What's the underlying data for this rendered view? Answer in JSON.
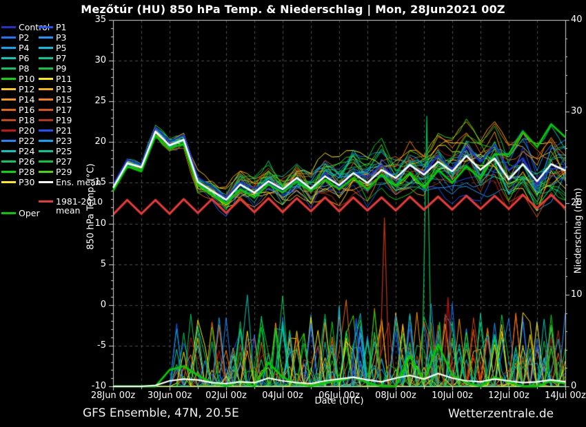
{
  "header": {
    "title": "Mezőtúr  (HU)  850 hPa Temp. & Niederschlag | Mon, 28Jun2021 00Z"
  },
  "footer": {
    "left": "GFS Ensemble, 47N, 20.5E",
    "right": "Wetterzentrale.de"
  },
  "chart_data": {
    "type": "line",
    "title": "Mezőtúr  (HU)  850 hPa Temp. & Niederschlag | Mon, 28Jun2021 00Z",
    "x": {
      "label": "Date (UTC)",
      "tick_labels": [
        "28Jun 00z",
        "30Jun 00z",
        "02Jul 00z",
        "04Jul 00z",
        "06Jul 00z",
        "08Jul 00z",
        "10Jul 00z",
        "12Jul 00z",
        "14Jul 00z"
      ],
      "days_total": 16,
      "step_hours": 12,
      "grid_every_days": 1
    },
    "y_left": {
      "label": "850 hPa Temp. (°C)",
      "min": -10,
      "max": 35,
      "ticks": [
        -10,
        -5,
        0,
        5,
        10,
        15,
        20,
        25,
        30,
        35
      ],
      "minor_step": 1
    },
    "y_right": {
      "label": "Niederschlag (mm)",
      "min": 0,
      "max": 40,
      "ticks": [
        0,
        10,
        20,
        30,
        40
      ],
      "minor_step": 2
    },
    "grid": {
      "on": true,
      "color": "#4d4d45"
    },
    "series": {
      "ens_mean_temp": [
        14.4,
        17.4,
        16.9,
        21.3,
        19.6,
        20.3,
        15.1,
        14.0,
        12.9,
        14.8,
        13.8,
        15.2,
        14.2,
        15.6,
        14.3,
        15.8,
        14.7,
        16.2,
        15.0,
        16.6,
        15.6,
        17.2,
        16.0,
        17.6,
        16.4,
        18.3,
        16.6,
        18.0,
        15.4,
        17.3,
        15.2,
        17.3,
        16.5
      ],
      "oper_temp": [
        14.0,
        17.0,
        16.4,
        20.8,
        19.2,
        19.8,
        14.8,
        13.5,
        12.5,
        14.2,
        13.2,
        14.8,
        13.8,
        15.2,
        14.0,
        15.4,
        14.2,
        15.6,
        14.2,
        16.0,
        14.6,
        16.2,
        14.4,
        16.6,
        15.0,
        17.0,
        15.5,
        18.5,
        18.5,
        21.3,
        19.4,
        22.2,
        20.6
      ],
      "climate_temp": [
        11.1,
        12.9,
        11.2,
        12.9,
        11.2,
        13.0,
        11.3,
        13.0,
        11.3,
        13.0,
        11.4,
        13.1,
        11.4,
        13.1,
        11.5,
        13.2,
        11.5,
        13.2,
        11.6,
        13.2,
        11.6,
        13.3,
        11.7,
        13.3,
        11.7,
        13.4,
        11.8,
        13.4,
        11.8,
        13.5,
        11.9,
        13.5,
        11.9
      ],
      "member_spread": [
        0.15,
        0.7,
        0.8,
        0.9,
        1.0,
        1.1,
        1.4,
        1.7,
        2.0,
        2.2,
        2.4,
        2.6,
        2.8,
        3.0,
        3.2,
        3.4,
        3.5,
        3.7,
        3.8,
        4.0,
        4.1,
        4.2,
        4.3,
        4.4,
        4.5,
        4.6,
        4.7,
        4.8,
        4.9,
        5.0,
        5.1,
        5.2,
        5.3
      ],
      "ens_mean_precip": [
        0,
        0,
        0,
        0.1,
        0.6,
        0.8,
        0.7,
        0.4,
        0.3,
        0.5,
        0.4,
        0.9,
        0.6,
        0.4,
        0.3,
        0.6,
        0.8,
        1.0,
        0.7,
        0.5,
        0.9,
        1.2,
        0.8,
        1.4,
        0.9,
        0.6,
        0.5,
        0.8,
        0.6,
        0.4,
        0.5,
        0.7,
        0.5
      ],
      "oper_precip": [
        0,
        0,
        0,
        0,
        1.8,
        2.2,
        1.2,
        0.4,
        0,
        0.6,
        0,
        2.6,
        1.0,
        0.3,
        0,
        0.4,
        0.6,
        1.0,
        0.4,
        0,
        0,
        3.3,
        0.6,
        4.6,
        1.2,
        0.4,
        0,
        1.0,
        0.5,
        0,
        0,
        0.6,
        0.3
      ],
      "big_precip_spikes": [
        {
          "i": 11.5,
          "mm": 6.3,
          "color": "#00cc44"
        },
        {
          "i": 16.0,
          "mm": 8.8,
          "color": "#00bbcc"
        },
        {
          "i": 17.2,
          "mm": 7.4,
          "color": "#1a53ff"
        },
        {
          "i": 19.2,
          "mm": 18.4,
          "color": "#bb3311"
        },
        {
          "i": 22.2,
          "mm": 29.5,
          "color": "#00bb55"
        },
        {
          "i": 23.1,
          "mm": 7.0,
          "color": "#00cc44"
        },
        {
          "i": 23.7,
          "mm": 9.7,
          "color": "#cc1111"
        }
      ]
    },
    "members": {
      "count": 30,
      "seed": 42,
      "colors": [
        "#1a53ff",
        "#1a75ff",
        "#1a97ff",
        "#00aaff",
        "#00c3e6",
        "#00ccbb",
        "#00cc99",
        "#00cc66",
        "#00cc44",
        "#00dd00",
        "#ffee00",
        "#ffcc00",
        "#ffb300",
        "#ff9900",
        "#ff8000",
        "#ee6600",
        "#dd5511",
        "#cc4411",
        "#bb3311",
        "#cc1111",
        "#1a53ff",
        "#1a86ff",
        "#00aaff",
        "#00ccc3",
        "#00cc99",
        "#00cc66",
        "#00cc33",
        "#00dd00",
        "#44dd00",
        "#ffee00"
      ]
    },
    "key_colors": {
      "control": "#2233cc",
      "ens_mean": "#ffffff",
      "oper": "#00cc00",
      "climate": "#e63939",
      "axis": "#d8d8d8"
    },
    "legend": {
      "col1": [
        {
          "label": "Control",
          "color": "#2233cc"
        },
        {
          "label": "P2",
          "color": "#1a75ff"
        },
        {
          "label": "P4",
          "color": "#00aaff"
        },
        {
          "label": "P6",
          "color": "#00ccbb"
        },
        {
          "label": "P8",
          "color": "#00cc66"
        },
        {
          "label": "P10",
          "color": "#00dd00"
        },
        {
          "label": "P12",
          "color": "#ffcc00"
        },
        {
          "label": "P14",
          "color": "#ff9900"
        },
        {
          "label": "P16",
          "color": "#ee6600"
        },
        {
          "label": "P18",
          "color": "#cc4411"
        },
        {
          "label": "P20",
          "color": "#cc1111"
        },
        {
          "label": "P22",
          "color": "#1a86ff"
        },
        {
          "label": "P24",
          "color": "#00ccc3"
        },
        {
          "label": "P26",
          "color": "#00cc66"
        },
        {
          "label": "P28",
          "color": "#00dd00"
        },
        {
          "label": "P30",
          "color": "#ffee00"
        },
        {
          "label": "Oper",
          "color": "#00cc00",
          "gap": 1
        }
      ],
      "col2": [
        {
          "label": "P1",
          "color": "#1a53ff"
        },
        {
          "label": "P3",
          "color": "#1a97ff"
        },
        {
          "label": "P5",
          "color": "#00c3e6"
        },
        {
          "label": "P7",
          "color": "#00cc99"
        },
        {
          "label": "P9",
          "color": "#00cc44"
        },
        {
          "label": "P11",
          "color": "#ffee00"
        },
        {
          "label": "P13",
          "color": "#ffb300"
        },
        {
          "label": "P15",
          "color": "#ff8000"
        },
        {
          "label": "P17",
          "color": "#dd5511"
        },
        {
          "label": "P19",
          "color": "#bb3311"
        },
        {
          "label": "P21",
          "color": "#1a53ff"
        },
        {
          "label": "P23",
          "color": "#00aaff"
        },
        {
          "label": "P25",
          "color": "#00cc99"
        },
        {
          "label": "P27",
          "color": "#00cc33"
        },
        {
          "label": "P29",
          "color": "#44dd00"
        },
        {
          "label": "Ens. mean",
          "color": "#ffffff"
        },
        {
          "label": "1981-2010 mean",
          "color": "#e63939",
          "gap": 2
        }
      ]
    }
  }
}
